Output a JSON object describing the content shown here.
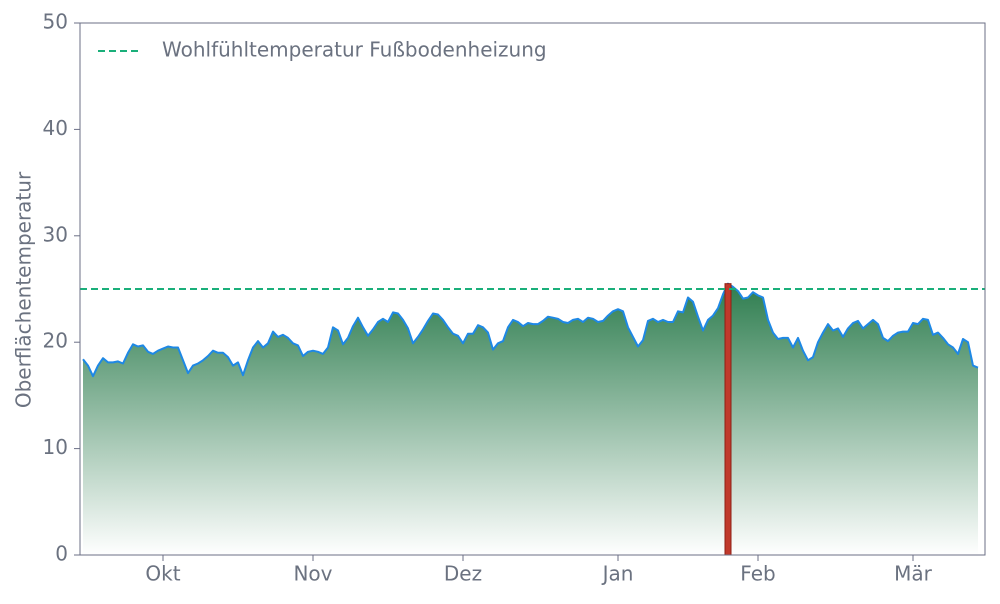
{
  "chart_data": {
    "type": "area",
    "ylabel": "Oberflächentemperatur",
    "ylim": [
      0,
      50
    ],
    "yticks": [
      0,
      10,
      20,
      30,
      40,
      50
    ],
    "grid": false,
    "legend": "upper left",
    "categories": [
      null,
      null,
      null,
      null,
      null,
      null,
      null,
      null,
      null,
      null,
      null,
      null,
      null,
      null,
      null,
      null,
      "Okt",
      null,
      null,
      null,
      null,
      null,
      null,
      null,
      null,
      null,
      null,
      null,
      null,
      null,
      null,
      null,
      null,
      null,
      null,
      null,
      null,
      null,
      null,
      null,
      null,
      null,
      null,
      null,
      null,
      null,
      "Nov",
      null,
      null,
      null,
      null,
      null,
      null,
      null,
      null,
      null,
      null,
      null,
      null,
      null,
      null,
      null,
      null,
      null,
      null,
      null,
      null,
      null,
      null,
      null,
      null,
      null,
      null,
      null,
      null,
      null,
      "Dez",
      null,
      null,
      null,
      null,
      null,
      null,
      null,
      null,
      null,
      null,
      null,
      null,
      null,
      null,
      null,
      null,
      null,
      null,
      null,
      null,
      null,
      null,
      null,
      null,
      null,
      null,
      null,
      null,
      null,
      null,
      "Jan",
      null,
      null,
      null,
      null,
      null,
      null,
      null,
      null,
      null,
      null,
      null,
      null,
      null,
      null,
      null,
      null,
      null,
      null,
      null,
      null,
      null,
      null,
      null,
      null,
      null,
      null,
      null,
      "Feb",
      null,
      null,
      null,
      null,
      null,
      null,
      null,
      null,
      null,
      null,
      null,
      null,
      null,
      null,
      null,
      null,
      null,
      null,
      null,
      null,
      null,
      null,
      null,
      null,
      null,
      null,
      null,
      null,
      null,
      null,
      "Mär",
      null,
      null,
      null,
      null,
      null,
      null,
      null,
      null,
      null,
      null,
      null,
      null,
      null
    ],
    "series": [
      {
        "type": "area",
        "color": "#1e88e5",
        "fill_top": "#2e7d4f",
        "fill_bottom": "#ffffff",
        "values": [
          18.4,
          17.8,
          16.8,
          17.8,
          18.5,
          18.1,
          18.1,
          18.2,
          18.0,
          19.0,
          19.8,
          19.6,
          19.7,
          19.1,
          18.9,
          19.2,
          19.4,
          19.6,
          19.5,
          19.5,
          18.3,
          17.1,
          17.8,
          18.0,
          18.3,
          18.7,
          19.2,
          19.0,
          19.0,
          18.6,
          17.8,
          18.1,
          16.9,
          18.3,
          19.5,
          20.1,
          19.5,
          19.9,
          21.0,
          20.5,
          20.7,
          20.4,
          19.9,
          19.7,
          18.7,
          19.1,
          19.2,
          19.1,
          18.9,
          19.5,
          21.4,
          21.1,
          19.8,
          20.4,
          21.5,
          22.3,
          21.4,
          20.6,
          21.2,
          21.9,
          22.2,
          21.9,
          22.8,
          22.7,
          22.1,
          21.3,
          19.9,
          20.5,
          21.2,
          22.0,
          22.7,
          22.6,
          22.1,
          21.4,
          20.8,
          20.6,
          19.9,
          20.8,
          20.8,
          21.6,
          21.4,
          20.9,
          19.3,
          19.9,
          20.1,
          21.4,
          22.1,
          21.9,
          21.5,
          21.8,
          21.7,
          21.7,
          22.0,
          22.4,
          22.3,
          22.2,
          21.9,
          21.8,
          22.1,
          22.2,
          21.9,
          22.3,
          22.2,
          21.9,
          22.0,
          22.5,
          22.9,
          23.1,
          22.9,
          21.4,
          20.5,
          19.6,
          20.2,
          22.0,
          22.2,
          21.9,
          22.1,
          21.9,
          21.9,
          22.9,
          22.8,
          24.2,
          23.8,
          22.4,
          21.1,
          22.1,
          22.5,
          23.2,
          24.5,
          25.5,
          25.2,
          24.8,
          24.1,
          24.2,
          24.7,
          24.4,
          24.2,
          22.1,
          20.9,
          20.3,
          20.4,
          20.4,
          19.5,
          20.4,
          19.2,
          18.3,
          18.6,
          20.0,
          20.9,
          21.7,
          21.1,
          21.3,
          20.5,
          21.3,
          21.8,
          22.0,
          21.3,
          21.7,
          22.1,
          21.7,
          20.4,
          20.1,
          20.6,
          20.9,
          21.0,
          21.0,
          21.8,
          21.7,
          22.2,
          22.1,
          20.7,
          20.9,
          20.4,
          19.8,
          19.5,
          18.9,
          20.3,
          20.0,
          17.8,
          17.6
        ]
      },
      {
        "type": "bar",
        "color": "#c0392b",
        "values": [
          null,
          null,
          null,
          null,
          null,
          null,
          null,
          null,
          null,
          null,
          null,
          null,
          null,
          null,
          null,
          null,
          null,
          null,
          null,
          null,
          null,
          null,
          null,
          null,
          null,
          null,
          null,
          null,
          null,
          null,
          null,
          null,
          null,
          null,
          null,
          null,
          null,
          null,
          null,
          null,
          null,
          null,
          null,
          null,
          null,
          null,
          null,
          null,
          null,
          null,
          null,
          null,
          null,
          null,
          null,
          null,
          null,
          null,
          null,
          null,
          null,
          null,
          null,
          null,
          null,
          null,
          null,
          null,
          null,
          null,
          null,
          null,
          null,
          null,
          null,
          null,
          null,
          null,
          null,
          null,
          null,
          null,
          null,
          null,
          null,
          null,
          null,
          null,
          null,
          null,
          null,
          null,
          null,
          null,
          null,
          null,
          null,
          null,
          null,
          null,
          null,
          null,
          null,
          null,
          null,
          null,
          null,
          null,
          null,
          null,
          null,
          null,
          null,
          null,
          null,
          null,
          null,
          null,
          null,
          null,
          null,
          null,
          null,
          null,
          null,
          null,
          null,
          null,
          null,
          25.5,
          null,
          null,
          null,
          null,
          null,
          null,
          null,
          null,
          null,
          null,
          null,
          null,
          null,
          null,
          null,
          null,
          null,
          null,
          null,
          null,
          null,
          null,
          null,
          null,
          null,
          null,
          null,
          null,
          null,
          null,
          null,
          null,
          null,
          null,
          null,
          null,
          null,
          null,
          null,
          null,
          null,
          null,
          null,
          null,
          null,
          null,
          null,
          null,
          null,
          null
        ]
      }
    ],
    "reference_lines": [
      {
        "value": 25,
        "label": "Wohlfühltemperatur Fußbodenheizung",
        "color": "#1aaf7a",
        "dashed": true
      }
    ]
  }
}
